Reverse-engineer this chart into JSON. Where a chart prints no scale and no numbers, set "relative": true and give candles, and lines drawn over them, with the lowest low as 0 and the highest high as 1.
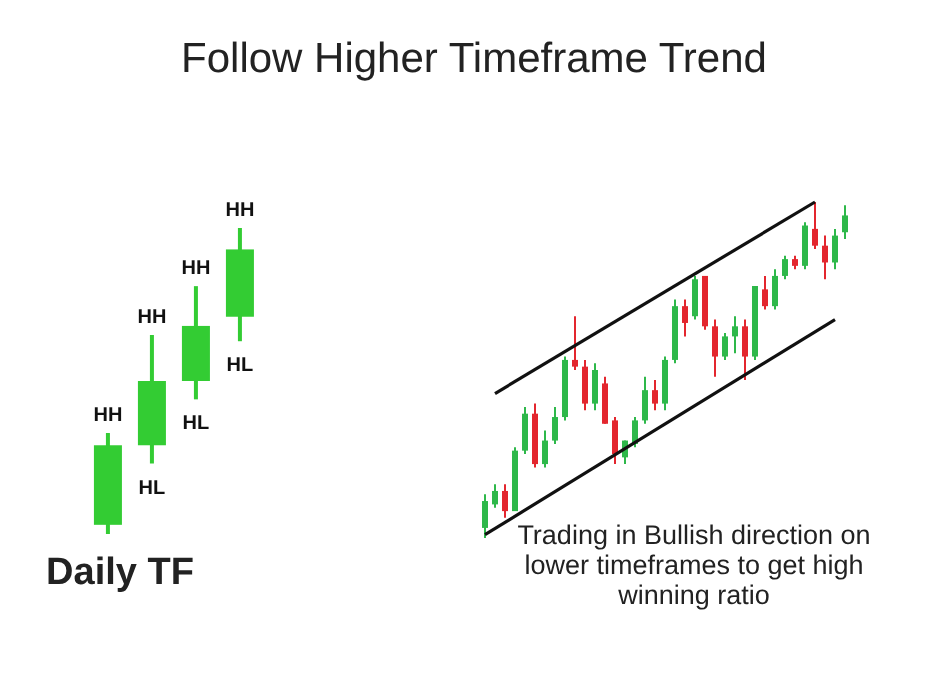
{
  "chart_data": [
    {
      "type": "candlestick",
      "title": "Follow Higher Timeframe Trend",
      "xlabel": "Daily TF",
      "relative": true,
      "categories": [
        null,
        null,
        null,
        null
      ],
      "ohlc": [
        [
          0.03,
          0.33,
          0,
          0.29
        ],
        [
          0.29,
          0.65,
          0.23,
          0.5
        ],
        [
          0.5,
          0.81,
          0.44,
          0.68
        ],
        [
          0.71,
          1,
          0.63,
          0.93
        ]
      ],
      "color": "#33cc33",
      "annotations": [
        {
          "text": "HH",
          "y": 0.33
        },
        {
          "text": "HH",
          "y": 0.65
        },
        {
          "text": "HL",
          "y": 0.23
        },
        {
          "text": "HH",
          "y": 0.81
        },
        {
          "text": "HL",
          "y": 0.44
        },
        {
          "text": "HH",
          "y": 1
        },
        {
          "text": "HL",
          "y": 0.63
        }
      ]
    },
    {
      "type": "candlestick",
      "xlabel": "Trading in Bullish direction on lower timeframes to get high winning ratio",
      "relative": true,
      "categories": [
        null,
        null,
        null,
        null,
        null,
        null,
        null,
        null,
        null,
        null,
        null,
        null,
        null,
        null,
        null,
        null,
        null,
        null,
        null,
        null,
        null,
        null,
        null,
        null,
        null,
        null,
        null,
        null,
        null,
        null,
        null,
        null,
        null,
        null,
        null,
        null,
        null
      ],
      "ohlc": [
        [
          0.03,
          0.13,
          0,
          0.11
        ],
        [
          0.1,
          0.16,
          0.09,
          0.14
        ],
        [
          0.14,
          0.16,
          0.06,
          0.08
        ],
        [
          0.08,
          0.27,
          0.08,
          0.26
        ],
        [
          0.26,
          0.39,
          0.25,
          0.37
        ],
        [
          0.37,
          0.4,
          0.21,
          0.22
        ],
        [
          0.22,
          0.32,
          0.21,
          0.29
        ],
        [
          0.29,
          0.39,
          0.28,
          0.36
        ],
        [
          0.36,
          0.54,
          0.35,
          0.53
        ],
        [
          0.53,
          0.66,
          0.5,
          0.51
        ],
        [
          0.51,
          0.53,
          0.38,
          0.4
        ],
        [
          0.4,
          0.52,
          0.38,
          0.5
        ],
        [
          0.46,
          0.48,
          0.34,
          0.34
        ],
        [
          0.35,
          0.36,
          0.22,
          0.25
        ],
        [
          0.24,
          0.29,
          0.22,
          0.29
        ],
        [
          0.28,
          0.36,
          0.27,
          0.35
        ],
        [
          0.35,
          0.48,
          0.34,
          0.44
        ],
        [
          0.44,
          0.47,
          0.38,
          0.4
        ],
        [
          0.4,
          0.54,
          0.38,
          0.53
        ],
        [
          0.53,
          0.71,
          0.52,
          0.69
        ],
        [
          0.69,
          0.71,
          0.6,
          0.64
        ],
        [
          0.66,
          0.78,
          0.65,
          0.77
        ],
        [
          0.78,
          0.78,
          0.62,
          0.63
        ],
        [
          0.63,
          0.65,
          0.48,
          0.54
        ],
        [
          0.54,
          0.61,
          0.53,
          0.6
        ],
        [
          0.6,
          0.66,
          0.55,
          0.63
        ],
        [
          0.63,
          0.65,
          0.47,
          0.54
        ],
        [
          0.54,
          0.75,
          0.53,
          0.75
        ],
        [
          0.74,
          0.78,
          0.68,
          0.69
        ],
        [
          0.69,
          0.8,
          0.68,
          0.78
        ],
        [
          0.78,
          0.84,
          0.77,
          0.83
        ],
        [
          0.83,
          0.84,
          0.8,
          0.81
        ],
        [
          0.81,
          0.94,
          0.8,
          0.93
        ],
        [
          0.92,
          1,
          0.86,
          0.87
        ],
        [
          0.87,
          0.9,
          0.77,
          0.82
        ],
        [
          0.82,
          0.92,
          0.8,
          0.9
        ],
        [
          0.91,
          0.99,
          0.89,
          0.96
        ]
      ],
      "colors": [
        "#2eb84a",
        "#2eb84a",
        "#e3262e",
        "#2eb84a",
        "#2eb84a",
        "#e3262e",
        "#2eb84a",
        "#2eb84a",
        "#2eb84a",
        "#e3262e",
        "#e3262e",
        "#2eb84a",
        "#e3262e",
        "#e3262e",
        "#2eb84a",
        "#2eb84a",
        "#2eb84a",
        "#e3262e",
        "#2eb84a",
        "#2eb84a",
        "#e3262e",
        "#2eb84a",
        "#e3262e",
        "#e3262e",
        "#2eb84a",
        "#2eb84a",
        "#e3262e",
        "#2eb84a",
        "#e3262e",
        "#2eb84a",
        "#2eb84a",
        "#e3262e",
        "#2eb84a",
        "#e3262e",
        "#e3262e",
        "#2eb84a",
        "#2eb84a"
      ],
      "series": [
        {
          "type": "line",
          "color": "#111111",
          "values": [
            null,
            0.43,
            null,
            null,
            null,
            null,
            null,
            null,
            null,
            null,
            null,
            null,
            null,
            null,
            null,
            null,
            null,
            null,
            null,
            null,
            null,
            null,
            null,
            null,
            null,
            null,
            null,
            null,
            null,
            null,
            null,
            null,
            null,
            1.0,
            null,
            null,
            null
          ]
        },
        {
          "type": "line",
          "color": "#111111",
          "values": [
            0.01,
            null,
            null,
            null,
            null,
            null,
            null,
            null,
            null,
            null,
            null,
            null,
            null,
            null,
            null,
            null,
            null,
            null,
            null,
            null,
            null,
            null,
            null,
            null,
            null,
            null,
            null,
            null,
            null,
            null,
            null,
            null,
            null,
            null,
            null,
            0.65,
            null
          ]
        }
      ]
    }
  ]
}
